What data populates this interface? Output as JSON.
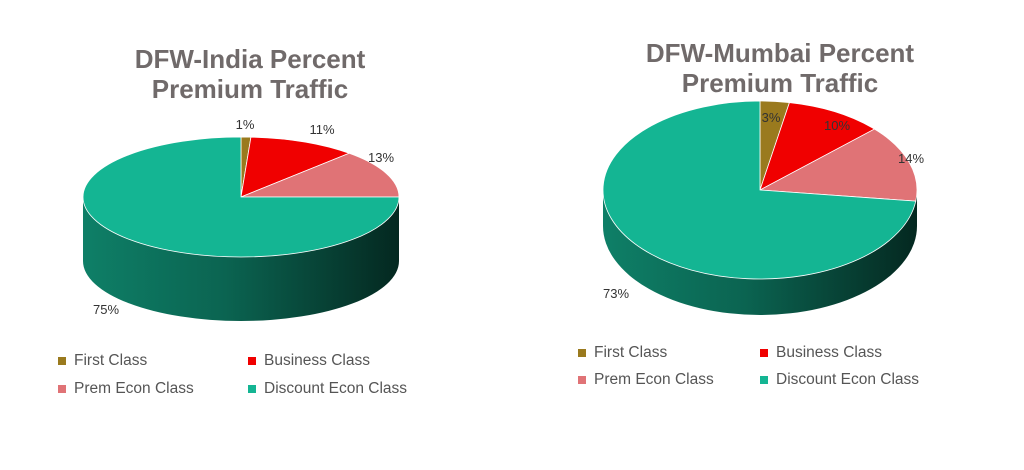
{
  "chart_data": [
    {
      "type": "pie",
      "title_lines": [
        "DFW-India Percent",
        "Premium Traffic"
      ],
      "categories": [
        "First Class",
        "Business Class",
        "Prem Econ Class",
        "Discount Econ Class"
      ],
      "values": [
        1,
        11,
        13,
        75
      ],
      "data_labels": [
        "1%",
        "11%",
        "13%",
        "75%"
      ],
      "colors": [
        "#9a7a1e",
        "#f00000",
        "#e07376",
        "#14b593"
      ],
      "legend_position": "bottom"
    },
    {
      "type": "pie",
      "title_lines": [
        "DFW-Mumbai Percent",
        "Premium Traffic"
      ],
      "categories": [
        "First Class",
        "Business Class",
        "Prem Econ Class",
        "Discount Econ Class"
      ],
      "values": [
        3,
        10,
        14,
        73
      ],
      "data_labels": [
        "3%",
        "10%",
        "14%",
        "73%"
      ],
      "colors": [
        "#9a7a1e",
        "#f00000",
        "#e07376",
        "#14b593"
      ],
      "legend_position": "bottom"
    }
  ]
}
